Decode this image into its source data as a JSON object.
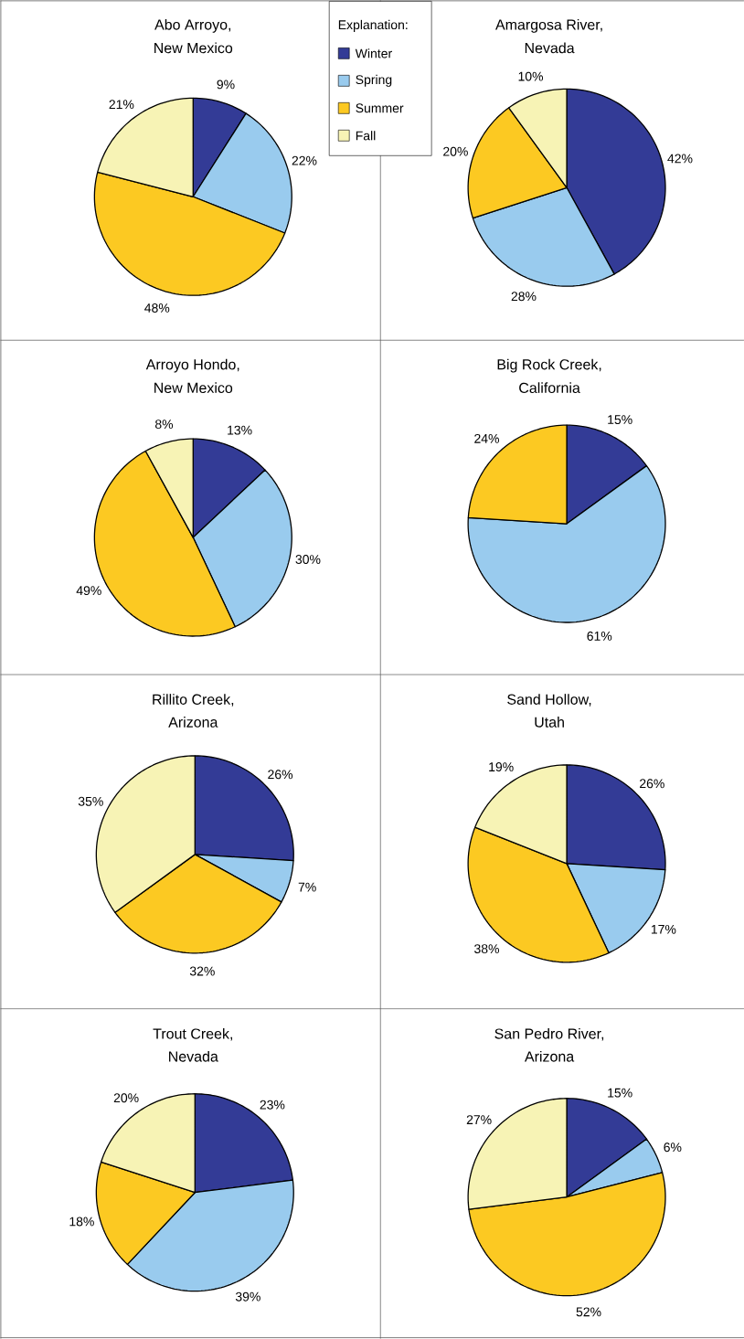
{
  "chart_data": [
    {
      "type": "pie",
      "title": "Abo Arroyo,",
      "subtitle": "New Mexico",
      "categories": [
        "Winter",
        "Spring",
        "Summer",
        "Fall"
      ],
      "values": [
        9,
        22,
        48,
        21
      ],
      "value_labels": [
        "9%",
        "22%",
        "48%",
        "21%"
      ],
      "colors": [
        "#333b96",
        "#99cbee",
        "#fcc922",
        "#f7f3b5"
      ],
      "legend": "top right",
      "legend_title": "Explanation:"
    },
    {
      "type": "pie",
      "title": "Amargosa River,",
      "subtitle": "Nevada",
      "categories": [
        null,
        null,
        null,
        null
      ],
      "values": [
        42,
        28,
        20,
        10
      ],
      "value_labels": [
        "42%",
        "28%",
        "20%",
        "10%"
      ],
      "colors": [
        "#333b96",
        "#99cbee",
        "#fcc922",
        "#f7f3b5"
      ]
    },
    {
      "type": "pie",
      "title": "Arroyo Hondo,",
      "subtitle": "New Mexico",
      "categories": [
        null,
        null,
        null,
        null
      ],
      "values": [
        13,
        30,
        49,
        8
      ],
      "value_labels": [
        "13%",
        "30%",
        "49%",
        "8%"
      ],
      "colors": [
        "#333b96",
        "#99cbee",
        "#fcc922",
        "#f7f3b5"
      ]
    },
    {
      "type": "pie",
      "title": "Big Rock Creek,",
      "subtitle": "California",
      "categories": [
        null,
        null,
        null
      ],
      "values": [
        15,
        61,
        24
      ],
      "value_labels": [
        "15%",
        "61%",
        "24%"
      ],
      "colors": [
        "#333b96",
        "#99cbee",
        "#fcc922"
      ]
    },
    {
      "type": "pie",
      "title": "Rillito Creek,",
      "subtitle": "Arizona",
      "categories": [
        null,
        null,
        null,
        null
      ],
      "values": [
        26,
        7,
        32,
        35
      ],
      "value_labels": [
        "26%",
        "7%",
        "32%",
        "35%"
      ],
      "colors": [
        "#333b96",
        "#99cbee",
        "#fcc922",
        "#f7f3b5"
      ]
    },
    {
      "type": "pie",
      "title": "Sand Hollow,",
      "subtitle": "Utah",
      "categories": [
        null,
        null,
        null,
        null
      ],
      "values": [
        26,
        17,
        38,
        19
      ],
      "value_labels": [
        "26%",
        "17%",
        "38%",
        "19%"
      ],
      "colors": [
        "#333b96",
        "#99cbee",
        "#fcc922",
        "#f7f3b5"
      ]
    },
    {
      "type": "pie",
      "title": "Trout Creek,",
      "subtitle": "Nevada",
      "categories": [
        null,
        null,
        null,
        null
      ],
      "values": [
        23,
        39,
        18,
        20
      ],
      "value_labels": [
        "23%",
        "39%",
        "18%",
        "20%"
      ],
      "colors": [
        "#333b96",
        "#99cbee",
        "#fcc922",
        "#f7f3b5"
      ]
    },
    {
      "type": "pie",
      "title": "San Pedro River,",
      "subtitle": "Arizona",
      "categories": [
        null,
        null,
        null,
        null
      ],
      "values": [
        15,
        6,
        52,
        27
      ],
      "value_labels": [
        "15%",
        "6%",
        "52%",
        "27%"
      ],
      "colors": [
        "#333b96",
        "#99cbee",
        "#fcc922",
        "#f7f3b5"
      ]
    }
  ]
}
